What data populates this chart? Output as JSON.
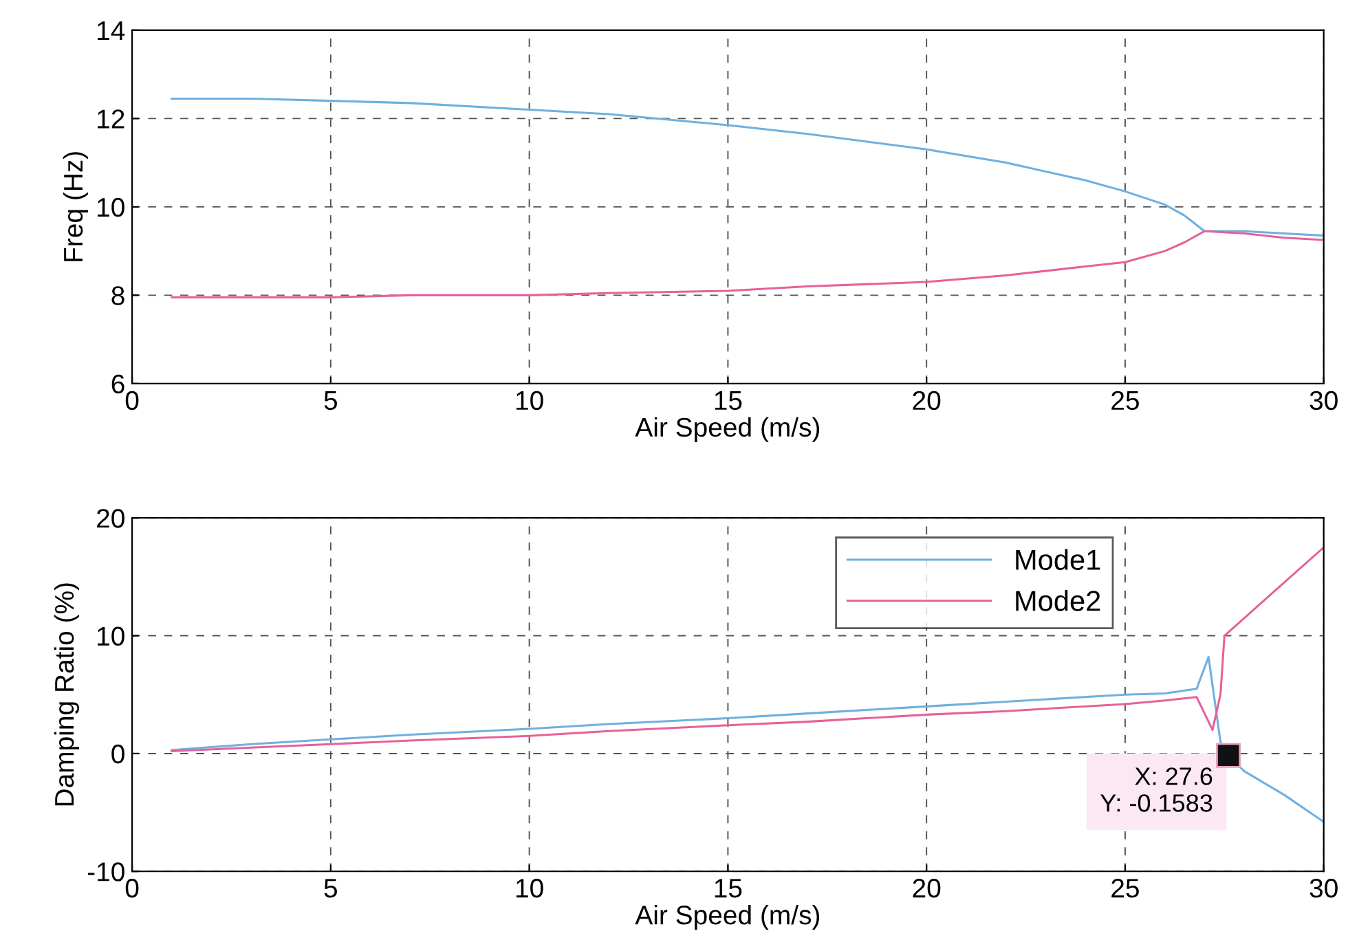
{
  "chart_data": [
    {
      "type": "line",
      "xlabel": "Air Speed (m/s)",
      "ylabel": "Freq (Hz)",
      "xlim": [
        0,
        30
      ],
      "xticks": [
        0,
        5,
        10,
        15,
        20,
        25,
        30
      ],
      "ylim": [
        6,
        14
      ],
      "yticks": [
        6,
        8,
        10,
        12,
        14
      ],
      "grid": true,
      "legend": false,
      "series": [
        {
          "color": "#6fb0e0",
          "x": [
            1,
            3,
            5,
            7,
            10,
            12,
            15,
            17,
            20,
            22,
            24,
            25,
            26,
            26.5,
            27,
            28,
            29,
            30
          ],
          "values": [
            12.45,
            12.45,
            12.4,
            12.35,
            12.2,
            12.1,
            11.85,
            11.65,
            11.3,
            11.0,
            10.6,
            10.35,
            10.05,
            9.8,
            9.45,
            9.45,
            9.4,
            9.35
          ]
        },
        {
          "color": "#e8609a",
          "x": [
            1,
            3,
            5,
            7,
            10,
            12,
            15,
            17,
            20,
            22,
            24,
            25,
            26,
            26.5,
            27,
            28,
            29,
            30
          ],
          "values": [
            7.95,
            7.95,
            7.95,
            8.0,
            8.0,
            8.05,
            8.1,
            8.2,
            8.3,
            8.45,
            8.65,
            8.75,
            9.0,
            9.2,
            9.45,
            9.4,
            9.3,
            9.25
          ]
        }
      ]
    },
    {
      "type": "line",
      "xlabel": "Air Speed (m/s)",
      "ylabel": "Damping Ratio (%)",
      "xlim": [
        0,
        30
      ],
      "xticks": [
        0,
        5,
        10,
        15,
        20,
        25,
        30
      ],
      "ylim": [
        -10,
        20
      ],
      "yticks": [
        -10,
        0,
        10,
        20
      ],
      "grid": true,
      "legend": "top right",
      "annotations": [
        {
          "text": "X: 27.6\nY: -0.1583",
          "x": 27.6,
          "y": -0.1583
        }
      ],
      "series": [
        {
          "name": "Mode1",
          "color": "#6fb0e0",
          "x": [
            1,
            3,
            5,
            7,
            10,
            12,
            15,
            17,
            20,
            22,
            25,
            26,
            26.8,
            27.1,
            27.4,
            27.6,
            28,
            29,
            30
          ],
          "values": [
            0.3,
            0.8,
            1.2,
            1.6,
            2.1,
            2.5,
            3.0,
            3.4,
            4.0,
            4.4,
            5.0,
            5.1,
            5.5,
            8.2,
            1.0,
            -0.2,
            -1.5,
            -3.5,
            -5.8
          ]
        },
        {
          "name": "Mode2",
          "color": "#e8609a",
          "x": [
            1,
            3,
            5,
            7,
            10,
            12,
            15,
            17,
            20,
            22,
            25,
            26,
            26.8,
            27.2,
            27.4,
            27.5,
            28,
            29,
            30
          ],
          "values": [
            0.2,
            0.5,
            0.8,
            1.1,
            1.5,
            1.9,
            2.4,
            2.7,
            3.3,
            3.6,
            4.2,
            4.5,
            4.8,
            2.0,
            5.0,
            10.0,
            11.5,
            14.5,
            17.5
          ]
        }
      ]
    }
  ]
}
